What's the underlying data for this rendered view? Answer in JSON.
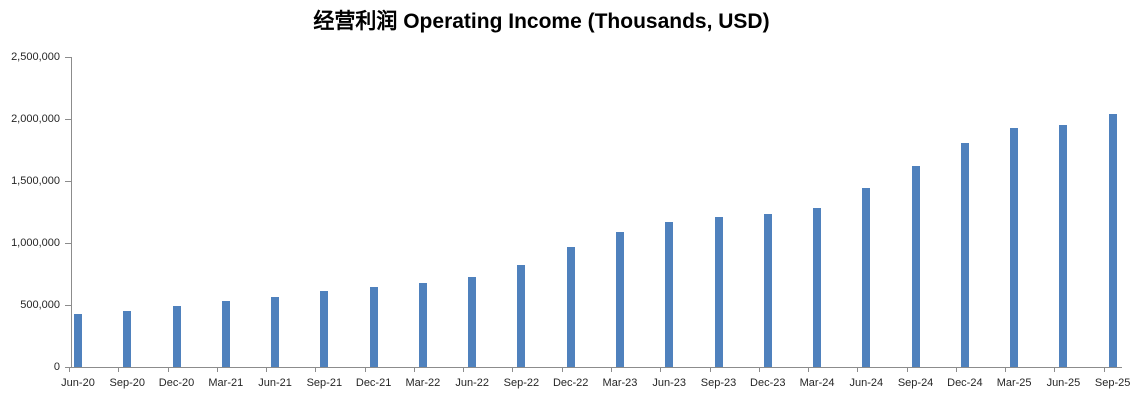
{
  "title": "经营利润 Operating Income (Thousands, USD)",
  "chart_data": {
    "type": "bar",
    "title": "经营利润 Operating Income (Thousands, USD)",
    "categories": [
      "Jun-20",
      "Sep-20",
      "Dec-20",
      "Mar-21",
      "Jun-21",
      "Sep-21",
      "Dec-21",
      "Mar-22",
      "Jun-22",
      "Sep-22",
      "Dec-22",
      "Mar-23",
      "Jun-23",
      "Sep-23",
      "Dec-23",
      "Mar-24",
      "Jun-24",
      "Sep-24",
      "Dec-24",
      "Mar-25",
      "Jun-25",
      "Sep-25"
    ],
    "values": [
      425000,
      450000,
      495000,
      530000,
      560000,
      608000,
      645000,
      678000,
      723000,
      820000,
      965000,
      1085000,
      1170000,
      1210000,
      1235000,
      1280000,
      1445000,
      1615000,
      1800000,
      1925000,
      1950000,
      2035000
    ],
    "xlabel": "",
    "ylabel": "",
    "ylim": [
      0,
      2500000
    ],
    "y_ticks": [
      0,
      500000,
      1000000,
      1500000,
      2000000,
      2500000
    ],
    "y_tick_labels": [
      "0",
      "500,000",
      "1,000,000",
      "1,500,000",
      "2,000,000",
      "2,500,000"
    ],
    "grid": false,
    "legend": "none",
    "colors": {
      "bar": "#4f81bd",
      "axis": "#8c8c8c",
      "label": "#262626",
      "title": "#000000",
      "background": "#ffffff"
    }
  }
}
